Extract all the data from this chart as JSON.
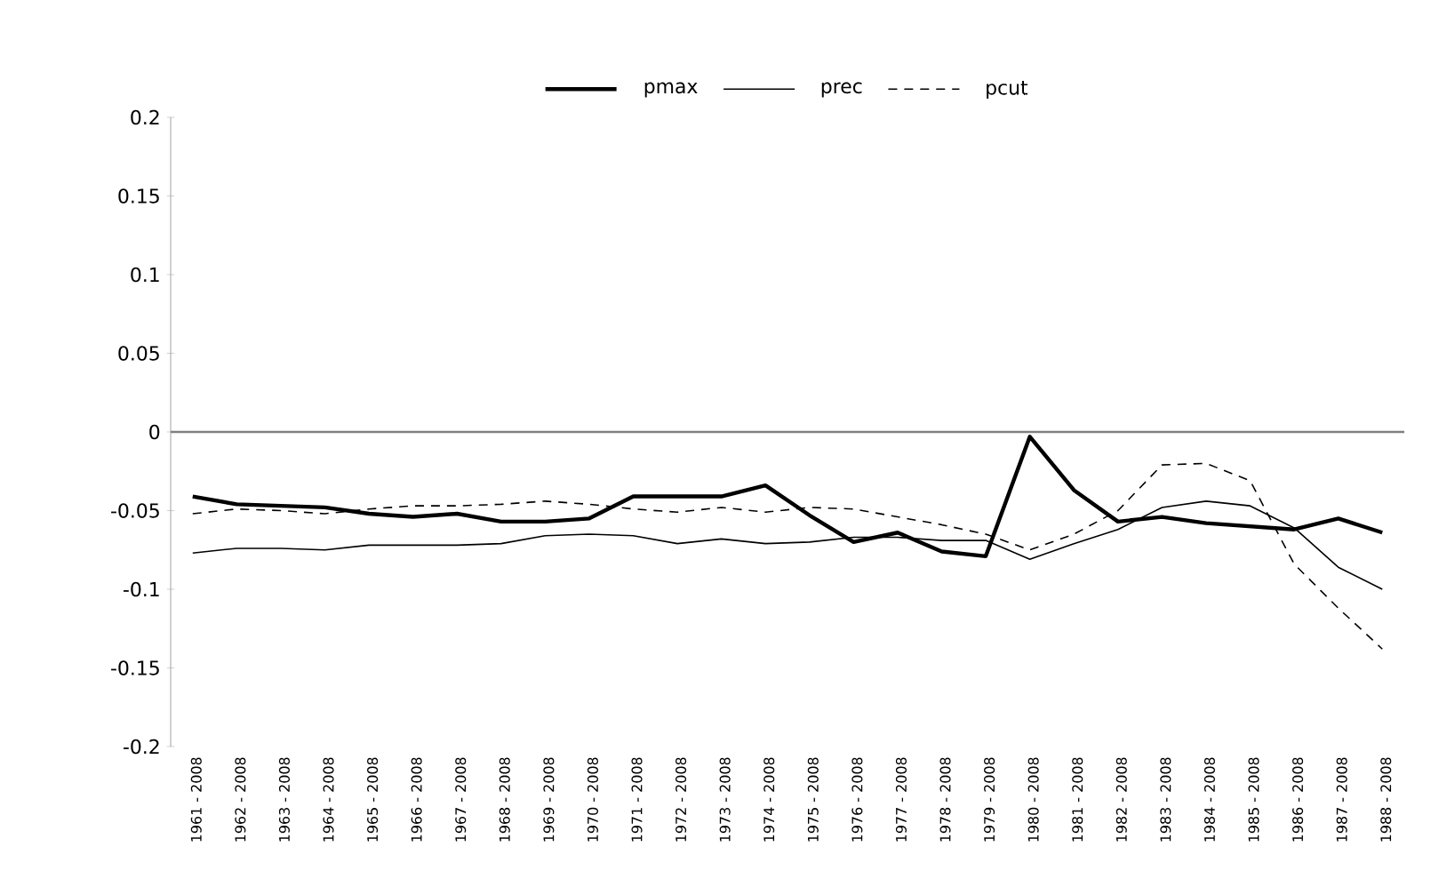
{
  "chart_data": {
    "type": "line",
    "categories": [
      "1961 - 2008",
      "1962 - 2008",
      "1963 - 2008",
      "1964 - 2008",
      "1965 - 2008",
      "1966 - 2008",
      "1967 - 2008",
      "1968 - 2008",
      "1969 - 2008",
      "1970 - 2008",
      "1971 - 2008",
      "1972 - 2008",
      "1973 - 2008",
      "1974 - 2008",
      "1975 - 2008",
      "1976 - 2008",
      "1977 - 2008",
      "1978 - 2008",
      "1979 - 2008",
      "1980 - 2008",
      "1981 - 2008",
      "1982 - 2008",
      "1983 - 2008",
      "1984 - 2008",
      "1985 - 2008",
      "1986 - 2008",
      "1987 - 2008",
      "1988 - 2008"
    ],
    "series": [
      {
        "name": "pmax",
        "color": "#000000",
        "line_style": "solid",
        "values": [
          -0.041,
          -0.046,
          -0.047,
          -0.048,
          -0.052,
          -0.054,
          -0.052,
          -0.057,
          -0.057,
          -0.055,
          -0.041,
          -0.041,
          -0.041,
          -0.034,
          -0.053,
          -0.07,
          -0.064,
          -0.076,
          -0.079,
          -0.003,
          -0.037,
          -0.057,
          -0.054,
          -0.058,
          -0.06,
          -0.062,
          -0.055,
          -0.064
        ]
      },
      {
        "name": "prec",
        "color": "#000000",
        "line_style": "solid",
        "values": [
          -0.077,
          -0.074,
          -0.074,
          -0.075,
          -0.072,
          -0.072,
          -0.072,
          -0.071,
          -0.066,
          -0.065,
          -0.066,
          -0.071,
          -0.068,
          -0.071,
          -0.07,
          -0.067,
          -0.067,
          -0.069,
          -0.069,
          -0.081,
          -0.071,
          -0.062,
          -0.048,
          -0.044,
          -0.047,
          -0.061,
          -0.086,
          -0.1
        ]
      },
      {
        "name": "pcut",
        "color": "#000000",
        "line_style": "dashed",
        "values": [
          -0.052,
          -0.049,
          -0.05,
          -0.052,
          -0.049,
          -0.047,
          -0.047,
          -0.046,
          -0.044,
          -0.046,
          -0.049,
          -0.051,
          -0.048,
          -0.051,
          -0.048,
          -0.049,
          -0.054,
          -0.059,
          -0.065,
          -0.075,
          -0.065,
          -0.05,
          -0.021,
          -0.02,
          -0.031,
          -0.084,
          -0.112,
          -0.138
        ]
      }
    ],
    "ylim": [
      -0.2,
      0.2
    ],
    "yticks": [
      -0.2,
      -0.15,
      -0.1,
      -0.05,
      0,
      0.05,
      0.1,
      0.15,
      0.2
    ],
    "ref_lines": [
      {
        "axis": "y",
        "value": 0,
        "color": "#808080"
      }
    ],
    "grid": false,
    "legend": "top",
    "marker": "none"
  }
}
